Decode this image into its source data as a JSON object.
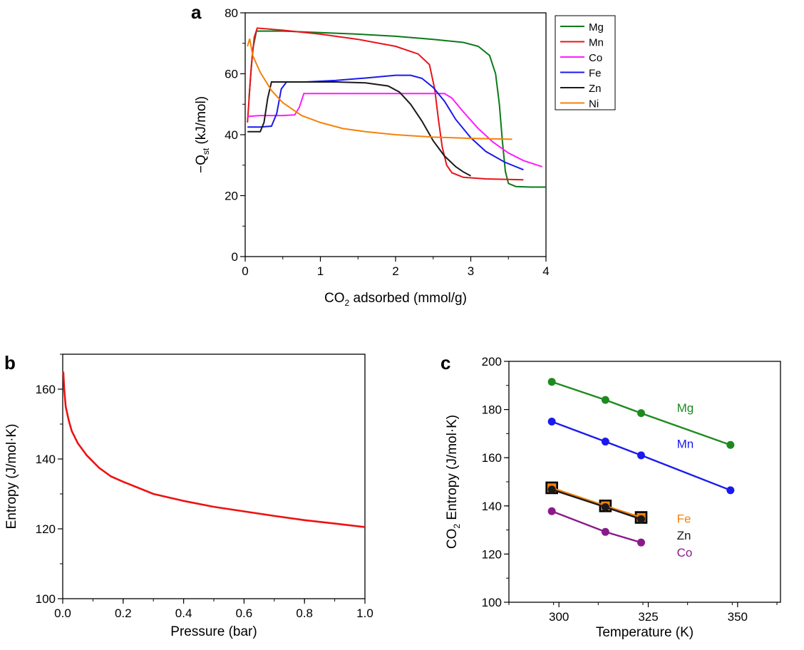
{
  "panels": [
    {
      "letter": "a"
    },
    {
      "letter": "b"
    },
    {
      "letter": "c"
    }
  ],
  "chart_data": [
    {
      "panel": "a",
      "type": "line",
      "xlabel_main": "CO",
      "xlabel_sub": "2",
      "xlabel_rest": " adsorbed (mmol/g)",
      "ylabel_main": "−Q",
      "ylabel_sub": "st",
      "ylabel_rest": " (kJ/mol)",
      "xlim": [
        0,
        4
      ],
      "ylim": [
        0,
        80
      ],
      "xticks": [
        0,
        1,
        2,
        3,
        4
      ],
      "yticks": [
        0,
        20,
        40,
        60,
        80
      ],
      "grid": false,
      "legend_position": "top-right, outside",
      "series": [
        {
          "name": "Mg",
          "color": "#0a7a1a",
          "points": [
            [
              0.05,
              52
            ],
            [
              0.1,
              68
            ],
            [
              0.15,
              74
            ],
            [
              0.5,
              74
            ],
            [
              1.0,
              73.5
            ],
            [
              1.5,
              73
            ],
            [
              2.0,
              72.3
            ],
            [
              2.5,
              71.3
            ],
            [
              2.9,
              70.3
            ],
            [
              3.1,
              69
            ],
            [
              3.25,
              66
            ],
            [
              3.33,
              60
            ],
            [
              3.38,
              50
            ],
            [
              3.42,
              38
            ],
            [
              3.46,
              28
            ],
            [
              3.5,
              24
            ],
            [
              3.6,
              23
            ],
            [
              3.8,
              22.8
            ],
            [
              4.0,
              22.8
            ]
          ]
        },
        {
          "name": "Mn",
          "color": "#e8141a",
          "points": [
            [
              0.03,
              44
            ],
            [
              0.08,
              62
            ],
            [
              0.12,
              72
            ],
            [
              0.16,
              75
            ],
            [
              0.5,
              74.3
            ],
            [
              1.0,
              73
            ],
            [
              1.5,
              71.3
            ],
            [
              2.0,
              69
            ],
            [
              2.3,
              66.5
            ],
            [
              2.45,
              63
            ],
            [
              2.52,
              55
            ],
            [
              2.57,
              45
            ],
            [
              2.62,
              36
            ],
            [
              2.68,
              30
            ],
            [
              2.75,
              27.5
            ],
            [
              2.9,
              26
            ],
            [
              3.2,
              25.5
            ],
            [
              3.7,
              25.2
            ]
          ]
        },
        {
          "name": "Co",
          "color": "#ff1aff",
          "points": [
            [
              0.03,
              46
            ],
            [
              0.2,
              46.3
            ],
            [
              0.5,
              46.3
            ],
            [
              0.66,
              46.5
            ],
            [
              0.72,
              49
            ],
            [
              0.78,
              53.5
            ],
            [
              1.0,
              53.5
            ],
            [
              1.5,
              53.5
            ],
            [
              2.0,
              53.5
            ],
            [
              2.5,
              53.5
            ],
            [
              2.65,
              53.5
            ],
            [
              2.75,
              52
            ],
            [
              2.9,
              47.5
            ],
            [
              3.1,
              42
            ],
            [
              3.3,
              37.5
            ],
            [
              3.5,
              34
            ],
            [
              3.7,
              31.5
            ],
            [
              3.95,
              29.5
            ]
          ]
        },
        {
          "name": "Fe",
          "color": "#1a1aee",
          "points": [
            [
              0.03,
              42.5
            ],
            [
              0.2,
              42.5
            ],
            [
              0.35,
              42.8
            ],
            [
              0.42,
              47
            ],
            [
              0.48,
              55
            ],
            [
              0.55,
              57.3
            ],
            [
              0.8,
              57.3
            ],
            [
              1.2,
              57.8
            ],
            [
              1.6,
              58.6
            ],
            [
              2.0,
              59.5
            ],
            [
              2.2,
              59.5
            ],
            [
              2.35,
              58.5
            ],
            [
              2.5,
              55.5
            ],
            [
              2.65,
              51
            ],
            [
              2.8,
              45
            ],
            [
              3.0,
              39
            ],
            [
              3.2,
              34.5
            ],
            [
              3.45,
              31
            ],
            [
              3.7,
              28.5
            ]
          ]
        },
        {
          "name": "Zn",
          "color": "#1a1a1a",
          "points": [
            [
              0.03,
              41
            ],
            [
              0.2,
              41
            ],
            [
              0.25,
              44
            ],
            [
              0.3,
              52
            ],
            [
              0.35,
              57.3
            ],
            [
              0.8,
              57.3
            ],
            [
              1.2,
              57.3
            ],
            [
              1.6,
              57
            ],
            [
              1.9,
              56
            ],
            [
              2.05,
              54
            ],
            [
              2.2,
              50
            ],
            [
              2.35,
              44.5
            ],
            [
              2.5,
              38
            ],
            [
              2.65,
              33
            ],
            [
              2.8,
              29.5
            ],
            [
              2.9,
              27.8
            ],
            [
              3.0,
              26.5
            ]
          ]
        },
        {
          "name": "Ni",
          "color": "#f5820a",
          "points": [
            [
              0.03,
              69
            ],
            [
              0.06,
              71.5
            ],
            [
              0.1,
              66
            ],
            [
              0.2,
              60.5
            ],
            [
              0.35,
              54.5
            ],
            [
              0.5,
              50.5
            ],
            [
              0.75,
              46.3
            ],
            [
              1.0,
              44
            ],
            [
              1.3,
              42
            ],
            [
              1.6,
              41
            ],
            [
              2.0,
              40
            ],
            [
              2.5,
              39.2
            ],
            [
              3.0,
              38.8
            ],
            [
              3.55,
              38.5
            ]
          ]
        }
      ]
    },
    {
      "panel": "b",
      "type": "line",
      "xlabel": "Pressure (bar)",
      "ylabel": "Entropy (J/mol·K)",
      "xlim": [
        0,
        1.0
      ],
      "ylim": [
        100,
        170
      ],
      "xticks": [
        "0.0",
        "0.2",
        "0.4",
        "0.6",
        "0.8",
        "1.0"
      ],
      "yticks": [
        100,
        120,
        140,
        160
      ],
      "grid": false,
      "series": [
        {
          "color": "#ee1111",
          "points": [
            [
              0.002,
              165
            ],
            [
              0.005,
              160
            ],
            [
              0.01,
              155
            ],
            [
              0.02,
              151
            ],
            [
              0.03,
              148
            ],
            [
              0.05,
              144.5
            ],
            [
              0.08,
              141
            ],
            [
              0.12,
              137.5
            ],
            [
              0.16,
              135
            ],
            [
              0.2,
              133.5
            ],
            [
              0.3,
              130
            ],
            [
              0.4,
              128
            ],
            [
              0.5,
              126.3
            ],
            [
              0.6,
              125
            ],
            [
              0.7,
              123.7
            ],
            [
              0.8,
              122.5
            ],
            [
              0.9,
              121.5
            ],
            [
              1.0,
              120.5
            ]
          ]
        }
      ]
    },
    {
      "panel": "c",
      "type": "scatter",
      "xlabel": "Temperature (K)",
      "ylabel_main": "CO",
      "ylabel_sub": "2",
      "ylabel_rest": " Entropy (J/mol·K)",
      "xlim": [
        286,
        362
      ],
      "ylim": [
        100,
        200
      ],
      "xticks": [
        300,
        325,
        350
      ],
      "yticks": [
        100,
        120,
        140,
        160,
        180,
        200
      ],
      "grid": false,
      "series": [
        {
          "name": "Mg",
          "color": "#1e8a1e",
          "marker": "circle",
          "x": [
            298,
            313,
            323,
            348
          ],
          "y": [
            191.5,
            184,
            178.5,
            165.3
          ],
          "label_pos": [
            333,
            179
          ]
        },
        {
          "name": "Mn",
          "color": "#1a1aee",
          "marker": "circle",
          "x": [
            298,
            313,
            323,
            348
          ],
          "y": [
            175,
            166.7,
            161,
            146.5
          ],
          "label_pos": [
            333,
            164
          ]
        },
        {
          "name": "Fe",
          "color": "#f5820a",
          "marker": "square",
          "x": [
            298,
            313,
            323
          ],
          "y": [
            147.5,
            140,
            135.2
          ],
          "label_pos": [
            333,
            133
          ]
        },
        {
          "name": "Zn",
          "color": "#1a1a1a",
          "marker": "circle",
          "x": [
            298,
            313,
            323
          ],
          "y": [
            146.8,
            139.5,
            134.5
          ],
          "label_pos": [
            333,
            126
          ]
        },
        {
          "name": "Co",
          "color": "#8a1a8a",
          "marker": "circle",
          "x": [
            298,
            313,
            323
          ],
          "y": [
            137.8,
            129.2,
            124.8
          ],
          "label_pos": [
            333,
            119
          ]
        }
      ]
    }
  ]
}
